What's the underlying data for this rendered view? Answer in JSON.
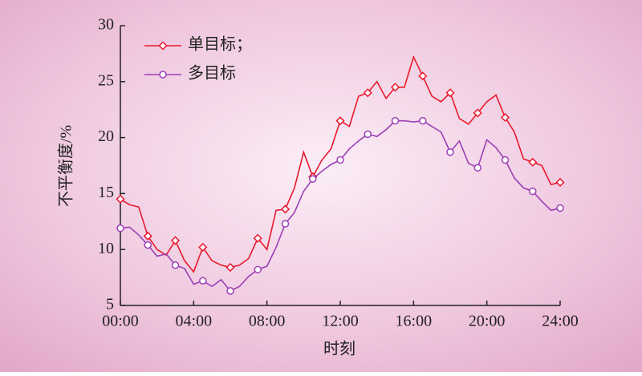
{
  "chart_data": {
    "type": "line",
    "xlabel": "时刻",
    "ylabel": "不平衡度/%",
    "x": [
      0,
      0.5,
      1,
      1.5,
      2,
      2.5,
      3,
      3.5,
      4,
      4.5,
      5,
      5.5,
      6,
      6.5,
      7,
      7.5,
      8,
      8.5,
      9,
      9.5,
      10,
      10.5,
      11,
      11.5,
      12,
      12.5,
      13,
      13.5,
      14,
      14.5,
      15,
      15.5,
      16,
      16.5,
      17,
      17.5,
      18,
      18.5,
      19,
      19.5,
      20,
      20.5,
      21,
      21.5,
      22,
      22.5,
      23,
      23.5,
      24
    ],
    "series": [
      {
        "name": "单目标；",
        "color": "#e8192c",
        "marker": "diamond",
        "values": [
          14.5,
          14.0,
          13.8,
          11.2,
          10.0,
          9.5,
          10.8,
          9.0,
          8.0,
          10.2,
          9.0,
          8.6,
          8.4,
          8.6,
          9.2,
          11.0,
          10.0,
          13.5,
          13.6,
          15.5,
          18.7,
          16.5,
          18.0,
          19.0,
          21.5,
          21.0,
          23.7,
          24.0,
          25.0,
          23.5,
          24.5,
          24.5,
          27.2,
          25.5,
          23.7,
          23.2,
          24.0,
          21.7,
          21.2,
          22.2,
          23.2,
          23.8,
          21.8,
          20.5,
          18.1,
          17.8,
          17.5,
          15.8,
          16.0
        ]
      },
      {
        "name": "多目标",
        "color": "#9b3fb5",
        "marker": "circle",
        "values": [
          11.9,
          12.0,
          11.3,
          10.4,
          9.4,
          9.6,
          8.6,
          8.3,
          6.9,
          7.2,
          6.7,
          7.3,
          6.3,
          6.7,
          7.6,
          8.2,
          8.5,
          10.2,
          12.3,
          13.3,
          15.2,
          16.3,
          17.0,
          17.6,
          18.0,
          19.0,
          19.7,
          20.3,
          20.1,
          20.7,
          21.5,
          21.5,
          21.4,
          21.5,
          21.0,
          20.5,
          18.7,
          19.7,
          17.7,
          17.3,
          19.8,
          19.1,
          18.0,
          16.4,
          15.5,
          15.2,
          14.3,
          13.5,
          13.7
        ]
      }
    ],
    "marker_every": 3,
    "xlim": [
      0,
      24
    ],
    "xticks": [
      {
        "value": 0,
        "label": "00:00"
      },
      {
        "value": 4,
        "label": "04:00"
      },
      {
        "value": 8,
        "label": "08:00"
      },
      {
        "value": 12,
        "label": "12:00"
      },
      {
        "value": 16,
        "label": "16:00"
      },
      {
        "value": 20,
        "label": "20:00"
      },
      {
        "value": 24,
        "label": "24:00"
      }
    ],
    "ylim": [
      5,
      30
    ],
    "yticks": [
      5,
      10,
      15,
      20,
      25,
      30
    ],
    "legend": "upper-left",
    "grid": false
  }
}
